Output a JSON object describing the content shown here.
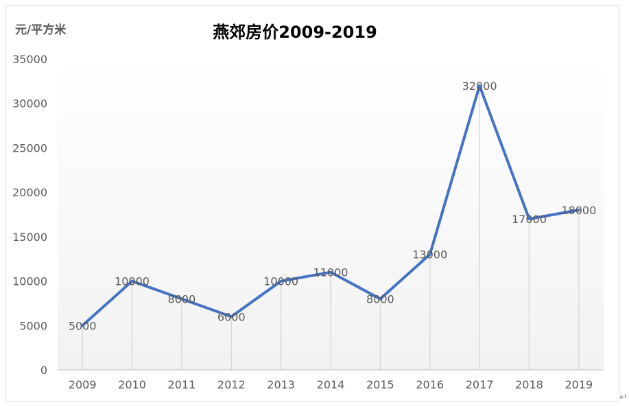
{
  "chart_data": {
    "type": "line",
    "title": "燕郊房价2009-2019",
    "ylabel": "元/平方米",
    "xlabel": "",
    "categories": [
      "2009",
      "2010",
      "2011",
      "2012",
      "2013",
      "2014",
      "2015",
      "2016",
      "2017",
      "2018",
      "2019"
    ],
    "series": [
      {
        "values": [
          5000,
          10000,
          8000,
          6000,
          10000,
          11000,
          8000,
          13000,
          32000,
          17000,
          18000
        ]
      }
    ],
    "ylim": [
      0,
      35000
    ],
    "yticks": [
      0,
      5000,
      10000,
      15000,
      20000,
      25000,
      30000,
      35000
    ],
    "data_labels": true,
    "drop_lines": true,
    "grid": false,
    "legend": "none",
    "colors": {
      "line": "#4472C4",
      "drop_line": "#d9d9d9",
      "axis": "#bfbfbf",
      "text": "#595959"
    }
  },
  "return_mark": "↵"
}
